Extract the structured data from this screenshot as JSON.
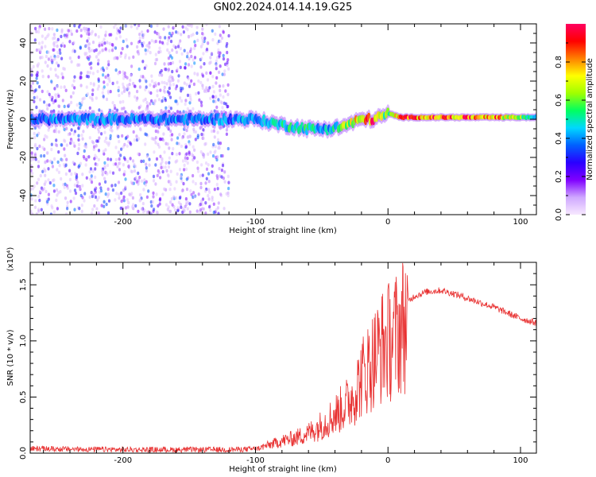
{
  "page_title": "GN02.2024.014.14.19.G25",
  "chart_data": [
    {
      "type": "heatmap",
      "title": "GN02.2024.014.14.19.G25",
      "xlabel": "Height of straight line (km)",
      "ylabel": "Frequency (Hz)",
      "xlim": [
        -270,
        112
      ],
      "ylim": [
        -50,
        50
      ],
      "x_ticks": [
        -200,
        -100,
        0,
        100
      ],
      "x_tick_labels": [
        "-200",
        "-100",
        "0",
        "100"
      ],
      "y_ticks": [
        -40,
        -20,
        0,
        20,
        40
      ],
      "y_tick_labels": [
        "-40",
        "-20",
        "0",
        "20",
        "40"
      ],
      "colorbar": {
        "label": "Normalized spectral amplitude",
        "range": [
          0,
          1
        ],
        "ticks": [
          0.0,
          0.2,
          0.4,
          0.6,
          0.8
        ],
        "tick_labels": [
          "0.0",
          "0.2",
          "0.4",
          "0.6",
          "0.8"
        ],
        "colormap": [
          "#f7e8ff",
          "#cfa8ff",
          "#8000ff",
          "#2a00ff",
          "#0060ff",
          "#00d8ff",
          "#00ff60",
          "#a0ff00",
          "#ffff00",
          "#ff8000",
          "#ff0000",
          "#ff0060"
        ]
      },
      "ridge": [
        {
          "x": -270,
          "f": 0,
          "amp": 0.4
        },
        {
          "x": -120,
          "f": 0,
          "amp": 0.4
        },
        {
          "x": -100,
          "f": 0,
          "amp": 0.45
        },
        {
          "x": -80,
          "f": -3,
          "amp": 0.5
        },
        {
          "x": -60,
          "f": -5,
          "amp": 0.5
        },
        {
          "x": -45,
          "f": -5,
          "amp": 0.45
        },
        {
          "x": -35,
          "f": -4,
          "amp": 0.6
        },
        {
          "x": -20,
          "f": 0,
          "amp": 0.8
        },
        {
          "x": -10,
          "f": 0,
          "amp": 0.9
        },
        {
          "x": 0,
          "f": 3,
          "amp": 0.55
        },
        {
          "x": 10,
          "f": 1,
          "amp": 0.88
        },
        {
          "x": 80,
          "f": 1,
          "amp": 0.85
        },
        {
          "x": 95,
          "f": 1,
          "amp": 0.7
        },
        {
          "x": 112,
          "f": 1,
          "amp": 0.45
        }
      ],
      "scatter_region": {
        "x_range": [
          -270,
          -120
        ],
        "f_range": [
          -50,
          50
        ]
      }
    },
    {
      "type": "line",
      "xlabel": "Height of straight line (km)",
      "ylabel": "SNR (10 * v/v)",
      "y_multiplier": "(x10⁴)",
      "xlim": [
        -270,
        112
      ],
      "ylim": [
        0,
        1.7
      ],
      "x_ticks": [
        -200,
        -100,
        0,
        100
      ],
      "x_tick_labels": [
        "-200",
        "-100",
        "0",
        "100"
      ],
      "y_ticks": [
        0.0,
        0.5,
        1.0,
        1.5
      ],
      "y_tick_labels": [
        "0.0",
        "0.5",
        "1.0",
        "1.5"
      ],
      "color": "#e83030",
      "series": [
        {
          "x": [
            -270,
            -250,
            -200,
            -150,
            -120,
            -100,
            -90,
            -80,
            -70,
            -60,
            -50,
            -40,
            -30,
            -25,
            -20,
            -15,
            -10,
            -5,
            0,
            5,
            10,
            15,
            20,
            30,
            40,
            50,
            60,
            70,
            80,
            90,
            100,
            112
          ],
          "values": [
            0.05,
            0.04,
            0.02,
            0.02,
            0.02,
            0.04,
            0.08,
            0.12,
            0.15,
            0.2,
            0.28,
            0.38,
            0.5,
            0.6,
            0.75,
            0.85,
            0.95,
            1.05,
            1.1,
            1.15,
            1.25,
            1.35,
            1.4,
            1.44,
            1.45,
            1.42,
            1.38,
            1.34,
            1.3,
            1.25,
            1.2,
            1.16
          ]
        }
      ]
    }
  ]
}
